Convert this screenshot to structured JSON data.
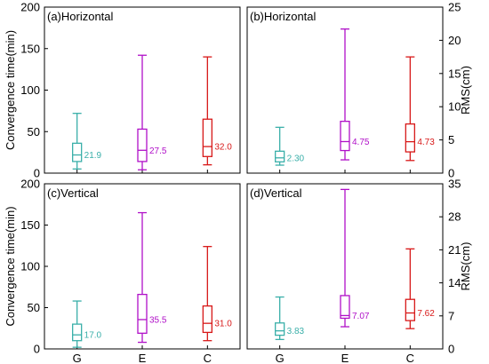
{
  "chart_data": [
    {
      "type": "box",
      "title": "(a)Horizontal",
      "ylabel": "Convergence time(min)",
      "yaxis_side": "left",
      "ylim": [
        0,
        200
      ],
      "yticks": [
        "0",
        "50",
        "100",
        "150",
        "200"
      ],
      "categories": [
        "G",
        "E",
        "C"
      ],
      "series": [
        {
          "category": "G",
          "color": "#3aafa9",
          "min": 5,
          "q1": 14,
          "median": 21.9,
          "q3": 36,
          "max": 72,
          "median_label": "21.9"
        },
        {
          "category": "E",
          "color": "#b010c8",
          "min": 4,
          "q1": 14,
          "median": 27.5,
          "q3": 53,
          "max": 142,
          "median_label": "27.5"
        },
        {
          "category": "C",
          "color": "#d81818",
          "min": 10,
          "q1": 20,
          "median": 32.0,
          "q3": 65,
          "max": 140,
          "median_label": "32.0"
        }
      ]
    },
    {
      "type": "box",
      "title": "(b)Horizontal",
      "ylabel": "RMS(cm)",
      "yaxis_side": "right",
      "ylim": [
        0,
        25
      ],
      "yticks": [
        "0",
        "5",
        "10",
        "15",
        "20",
        "25"
      ],
      "categories": [
        "G",
        "E",
        "C"
      ],
      "series": [
        {
          "category": "G",
          "color": "#3aafa9",
          "min": 1.2,
          "q1": 1.7,
          "median": 2.3,
          "q3": 3.3,
          "max": 6.9,
          "median_label": "2.30"
        },
        {
          "category": "E",
          "color": "#b010c8",
          "min": 2.0,
          "q1": 3.4,
          "median": 4.75,
          "q3": 7.8,
          "max": 21.7,
          "median_label": "4.75"
        },
        {
          "category": "C",
          "color": "#d81818",
          "min": 1.9,
          "q1": 3.2,
          "median": 4.73,
          "q3": 7.4,
          "max": 17.5,
          "median_label": "4.73"
        }
      ]
    },
    {
      "type": "box",
      "title": "(c)Vertical",
      "ylabel": "Convergence time(min)",
      "yaxis_side": "left",
      "ylim": [
        0,
        200
      ],
      "yticks": [
        "0",
        "50",
        "100",
        "150",
        "200"
      ],
      "categories": [
        "G",
        "E",
        "C"
      ],
      "series": [
        {
          "category": "G",
          "color": "#3aafa9",
          "min": 2,
          "q1": 10,
          "median": 17.0,
          "q3": 30,
          "max": 58,
          "median_label": "17.0"
        },
        {
          "category": "E",
          "color": "#b010c8",
          "min": 8,
          "q1": 19,
          "median": 35.5,
          "q3": 66,
          "max": 165,
          "median_label": "35.5"
        },
        {
          "category": "C",
          "color": "#d81818",
          "min": 10,
          "q1": 20,
          "median": 31.0,
          "q3": 52,
          "max": 124,
          "median_label": "31.0"
        }
      ]
    },
    {
      "type": "box",
      "title": "(d)Vertical",
      "ylabel": "RMS(cm)",
      "yaxis_side": "right",
      "ylim": [
        0,
        35
      ],
      "yticks": [
        "0",
        "7",
        "14",
        "21",
        "28",
        "35"
      ],
      "categories": [
        "G",
        "E",
        "C"
      ],
      "series": [
        {
          "category": "G",
          "color": "#3aafa9",
          "min": 2.0,
          "q1": 2.9,
          "median": 3.83,
          "q3": 5.5,
          "max": 11.0,
          "median_label": "3.83"
        },
        {
          "category": "E",
          "color": "#b010c8",
          "min": 4.7,
          "q1": 6.5,
          "median": 7.07,
          "q3": 11.3,
          "max": 33.8,
          "median_label": "7.07"
        },
        {
          "category": "C",
          "color": "#d81818",
          "min": 4.3,
          "q1": 6.0,
          "median": 7.62,
          "q3": 10.5,
          "max": 21.2,
          "median_label": "7.62"
        }
      ]
    }
  ]
}
